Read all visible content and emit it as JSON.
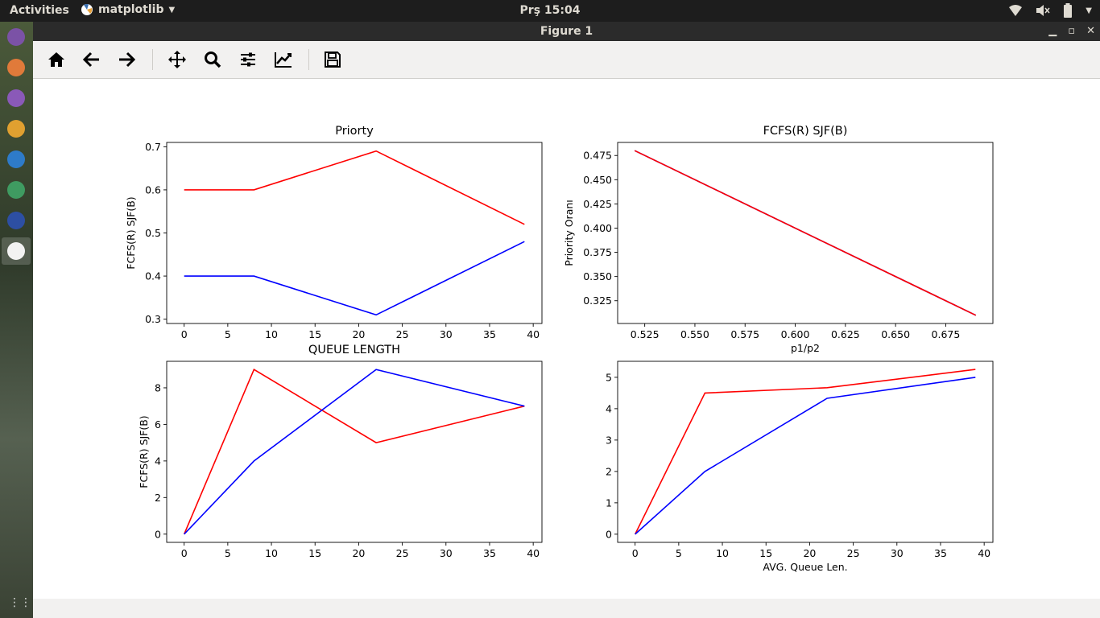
{
  "topbar": {
    "activities": "Activities",
    "app_name": "matplotlib",
    "clock": "Prş 15:04"
  },
  "window": {
    "title": "Figure 1"
  },
  "toolbar": {
    "buttons": [
      "home-icon",
      "back-arrow-icon",
      "forward-arrow-icon",
      "pan-icon",
      "zoom-icon",
      "configure-subplots-icon",
      "edit-axis-icon",
      "save-icon"
    ]
  },
  "colors": {
    "red": "#ff0000",
    "blue": "#0000ff"
  },
  "chart_data": [
    {
      "type": "line",
      "title": "Priorty",
      "xlabel": "",
      "ylabel": "FCFS(R) SJF(B)",
      "xlim": [
        -2,
        41
      ],
      "ylim": [
        0.29,
        0.71
      ],
      "xticks": [
        0,
        5,
        10,
        15,
        20,
        25,
        30,
        35,
        40
      ],
      "yticks": [
        0.3,
        0.4,
        0.5,
        0.6,
        0.7
      ],
      "xtick_labels": [
        "0",
        "5",
        "10",
        "15",
        "20",
        "25",
        "30",
        "35",
        "40"
      ],
      "ytick_labels": [
        "0.3",
        "0.4",
        "0.5",
        "0.6",
        "0.7"
      ],
      "series": [
        {
          "color": "#ff0000",
          "x": [
            0,
            8,
            22,
            39
          ],
          "y": [
            0.6,
            0.6,
            0.69,
            0.52
          ]
        },
        {
          "color": "#0000ff",
          "x": [
            0,
            8,
            22,
            39
          ],
          "y": [
            0.4,
            0.4,
            0.31,
            0.48
          ]
        }
      ]
    },
    {
      "type": "line",
      "title": "FCFS(R) SJF(B)",
      "xlabel": "p1/p2",
      "ylabel": "Priority Oranı",
      "xlim": [
        0.5115,
        0.6985
      ],
      "ylim": [
        0.3015,
        0.4885
      ],
      "xticks": [
        0.525,
        0.55,
        0.575,
        0.6,
        0.625,
        0.65,
        0.675
      ],
      "yticks": [
        0.325,
        0.35,
        0.375,
        0.4,
        0.425,
        0.45,
        0.475
      ],
      "xtick_labels": [
        "0.525",
        "0.550",
        "0.575",
        "0.600",
        "0.625",
        "0.650",
        "0.675"
      ],
      "ytick_labels": [
        "0.325",
        "0.350",
        "0.375",
        "0.400",
        "0.425",
        "0.450",
        "0.475"
      ],
      "series": [
        {
          "color": "#0000ff",
          "x": [
            0.52,
            0.69
          ],
          "y": [
            0.48,
            0.31
          ]
        },
        {
          "color": "#ff0000",
          "x": [
            0.52,
            0.69
          ],
          "y": [
            0.48,
            0.31
          ]
        }
      ]
    },
    {
      "type": "line",
      "title": "QUEUE LENGTH",
      "xlabel": "",
      "ylabel": "FCFS(R) SJF(B)",
      "xlim": [
        -2,
        41
      ],
      "ylim": [
        -0.45,
        9.45
      ],
      "xticks": [
        0,
        5,
        10,
        15,
        20,
        25,
        30,
        35,
        40
      ],
      "yticks": [
        0,
        2,
        4,
        6,
        8
      ],
      "xtick_labels": [
        "0",
        "5",
        "10",
        "15",
        "20",
        "25",
        "30",
        "35",
        "40"
      ],
      "ytick_labels": [
        "0",
        "2",
        "4",
        "6",
        "8"
      ],
      "series": [
        {
          "color": "#ff0000",
          "x": [
            0,
            8,
            22,
            39
          ],
          "y": [
            0,
            9,
            5,
            7
          ]
        },
        {
          "color": "#0000ff",
          "x": [
            0,
            8,
            22,
            39
          ],
          "y": [
            0,
            4,
            9,
            7
          ]
        }
      ]
    },
    {
      "type": "line",
      "title": "",
      "xlabel": "AVG. Queue Len.",
      "ylabel": "",
      "xlim": [
        -2,
        41
      ],
      "ylim": [
        -0.26,
        5.51
      ],
      "xticks": [
        0,
        5,
        10,
        15,
        20,
        25,
        30,
        35,
        40
      ],
      "yticks": [
        0,
        1,
        2,
        3,
        4,
        5
      ],
      "xtick_labels": [
        "0",
        "5",
        "10",
        "15",
        "20",
        "25",
        "30",
        "35",
        "40"
      ],
      "ytick_labels": [
        "0",
        "1",
        "2",
        "3",
        "4",
        "5"
      ],
      "series": [
        {
          "color": "#ff0000",
          "x": [
            0,
            8,
            22,
            39
          ],
          "y": [
            0,
            4.5,
            4.67,
            5.25
          ]
        },
        {
          "color": "#0000ff",
          "x": [
            0,
            8,
            22,
            39
          ],
          "y": [
            0,
            2,
            4.33,
            5
          ]
        }
      ]
    }
  ]
}
